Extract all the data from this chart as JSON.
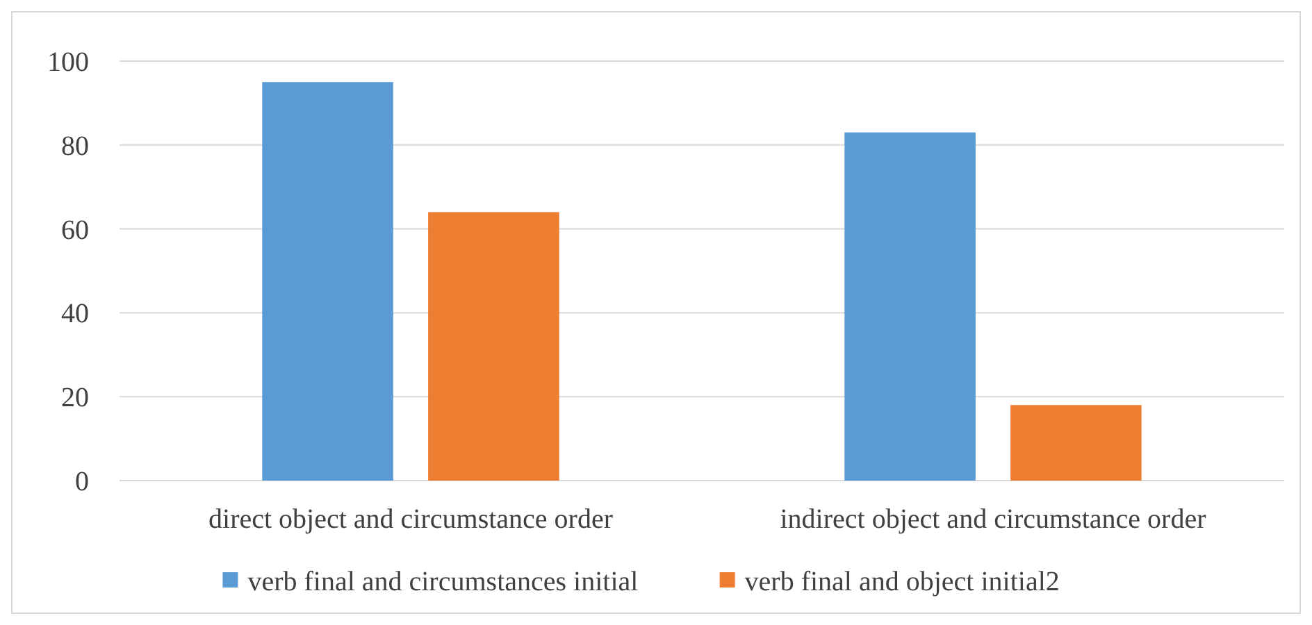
{
  "chart_data": {
    "type": "bar",
    "categories": [
      "direct object and circumstance order",
      "indirect object and circumstance order"
    ],
    "series": [
      {
        "name": "verb final and circumstances initial",
        "color": "#5b9bd5",
        "values": [
          95,
          83
        ]
      },
      {
        "name": "verb final and object initial2",
        "color": "#ed7d31",
        "values": [
          64,
          18
        ]
      }
    ],
    "ylim": [
      0,
      100
    ],
    "yticks": [
      0,
      20,
      40,
      60,
      80,
      100
    ],
    "grid": "y",
    "legend": "bottom"
  }
}
